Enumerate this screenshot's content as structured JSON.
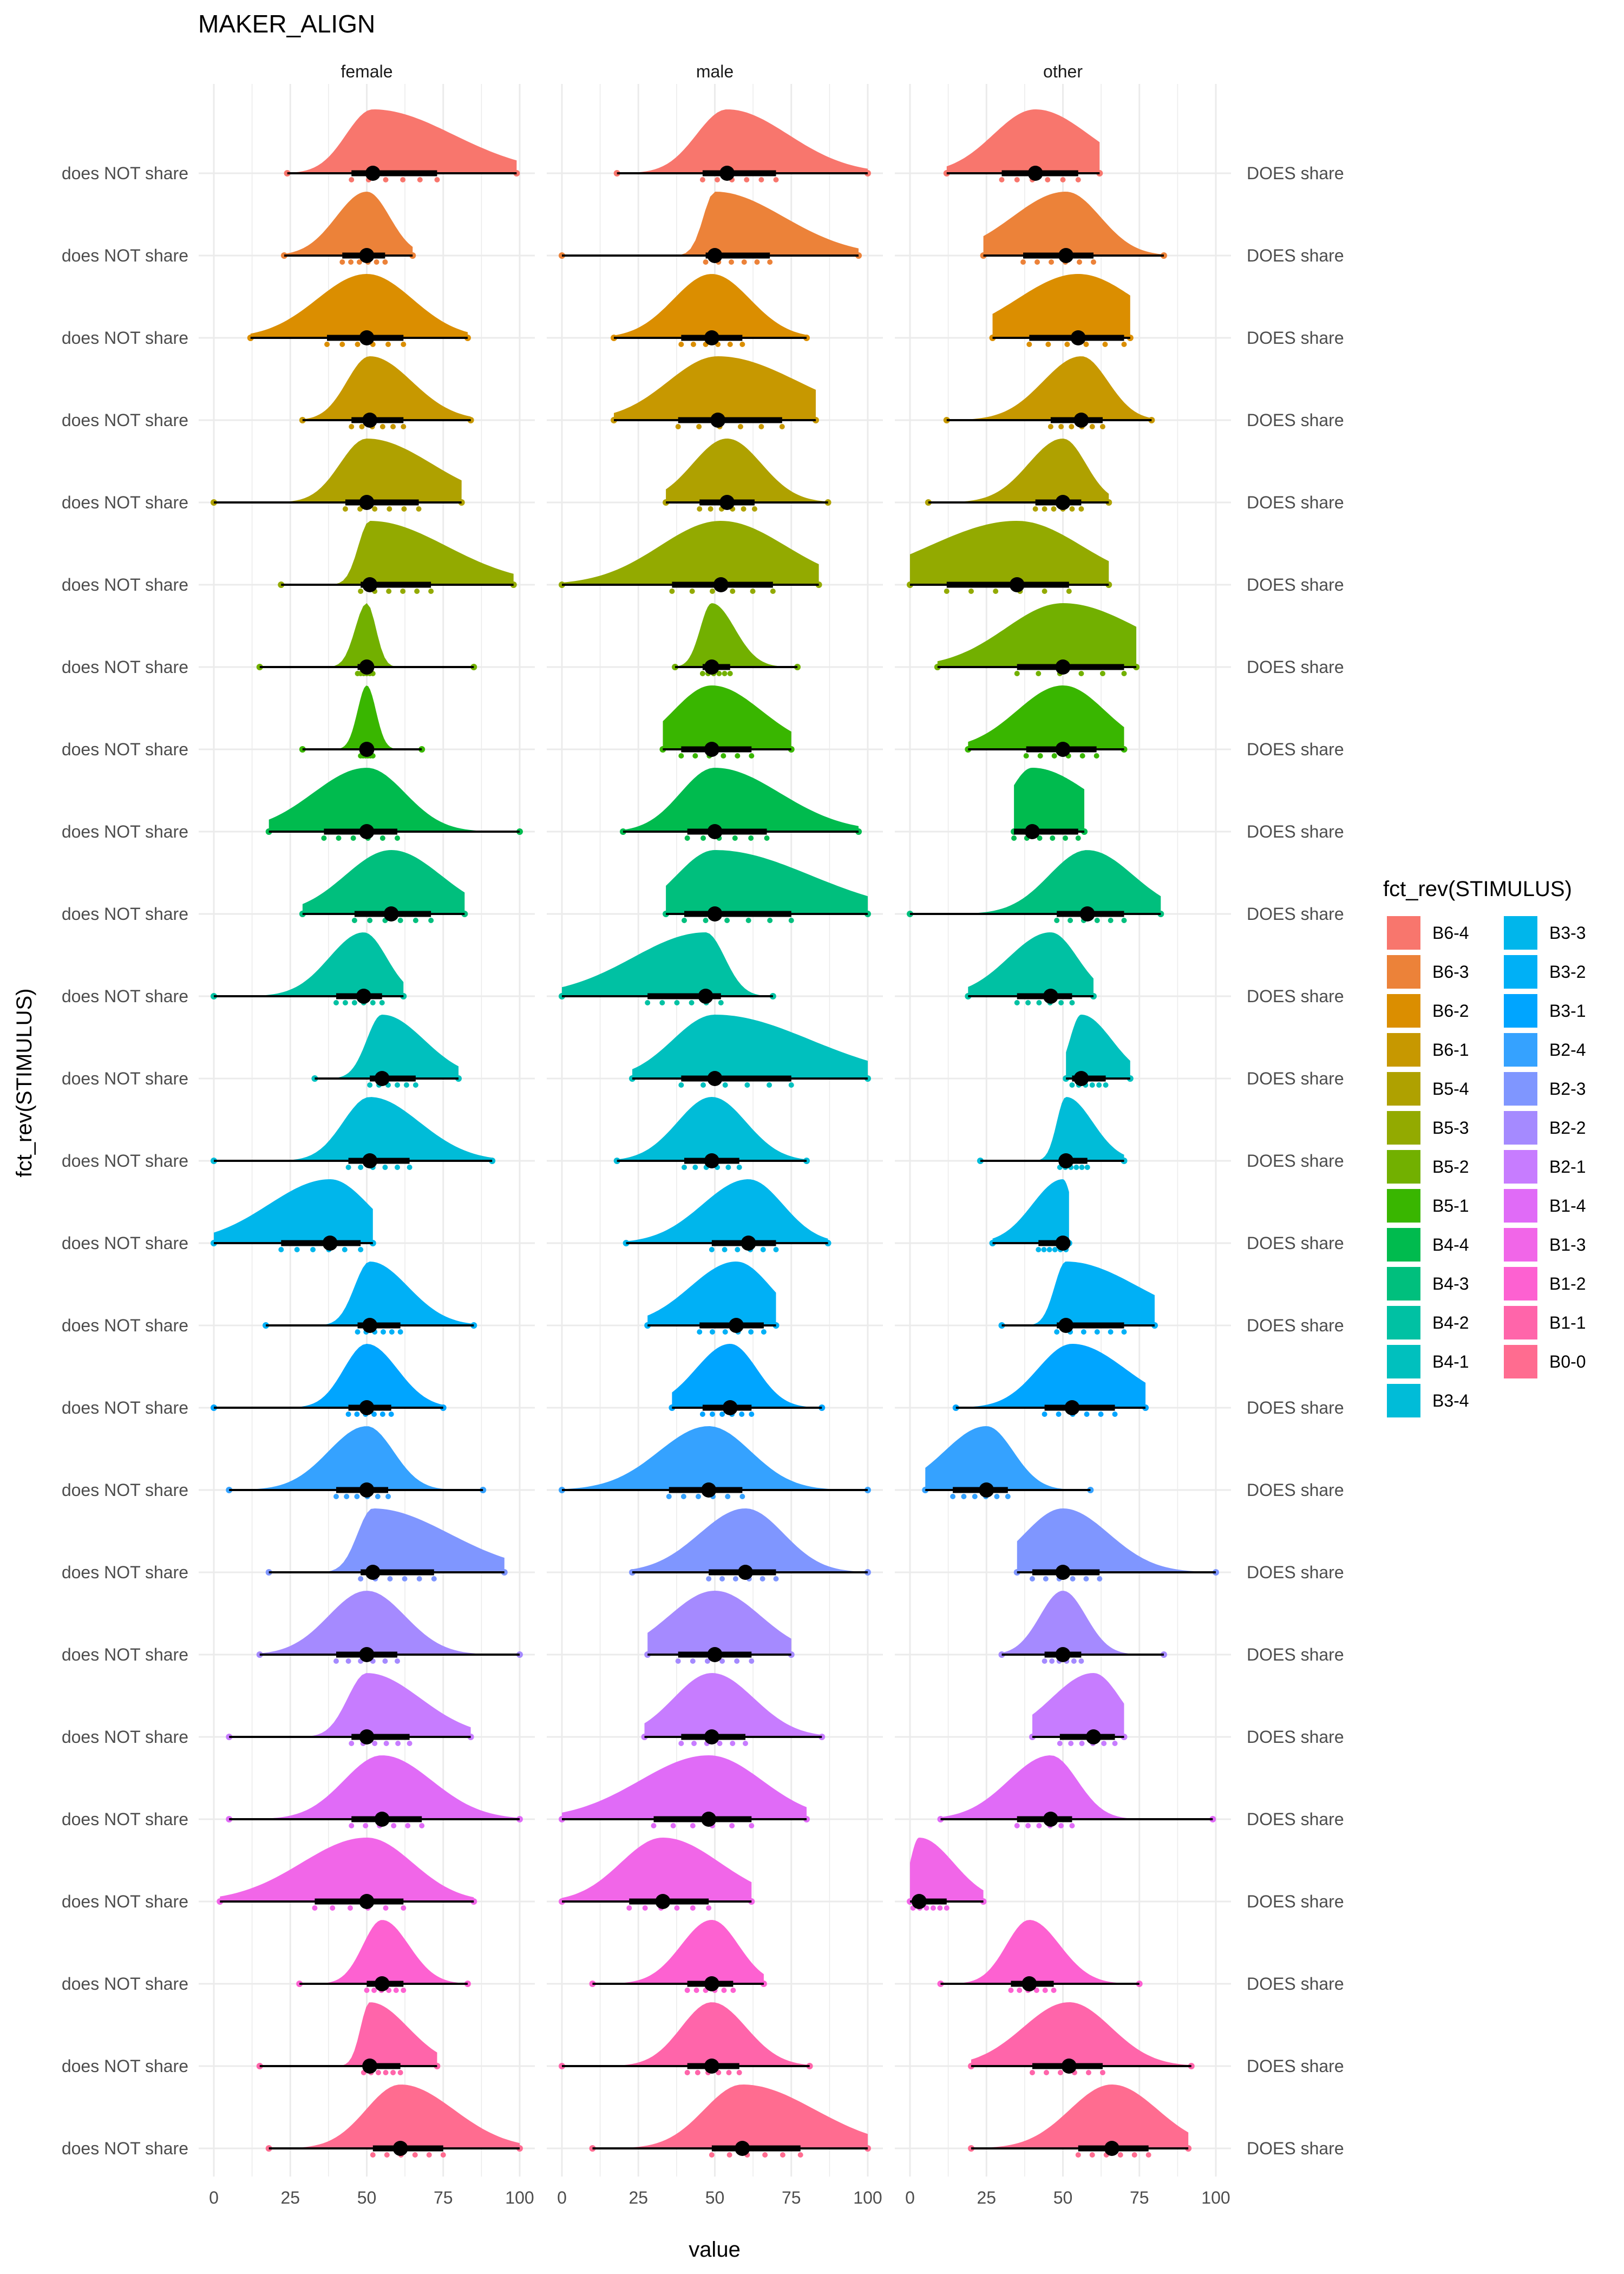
{
  "chart_data": {
    "type": "raincloud",
    "title": "MAKER_ALIGN",
    "xlabel": "value",
    "ylabel": "fct_rev(STIMULUS)",
    "xlim": [
      0,
      100
    ],
    "x_ticks": [
      0,
      25,
      50,
      75,
      100
    ],
    "facets": [
      "female",
      "male",
      "other"
    ],
    "row_label_left": "does NOT share",
    "row_label_right": "DOES share",
    "legend_title": "fct_rev(STIMULUS)",
    "legend_placement": "right",
    "grid": true,
    "stimuli": [
      "B0-0",
      "B1-1",
      "B1-2",
      "B1-3",
      "B1-4",
      "B2-1",
      "B2-2",
      "B2-3",
      "B2-4",
      "B3-1",
      "B3-2",
      "B3-3",
      "B3-4",
      "B4-1",
      "B4-2",
      "B4-3",
      "B4-4",
      "B5-1",
      "B5-2",
      "B5-3",
      "B5-4",
      "B6-1",
      "B6-2",
      "B6-3",
      "B6-4"
    ],
    "legend_order": [
      "B6-4",
      "B6-3",
      "B6-2",
      "B6-1",
      "B5-4",
      "B5-3",
      "B5-2",
      "B5-1",
      "B4-4",
      "B4-3",
      "B4-2",
      "B4-1",
      "B3-4",
      "B3-3",
      "B3-2",
      "B3-1",
      "B2-4",
      "B2-3",
      "B2-2",
      "B2-1",
      "B1-4",
      "B1-3",
      "B1-2",
      "B1-1",
      "B0-0"
    ],
    "colors": {
      "B6-4": "#F8766D",
      "B6-3": "#EC8239",
      "B6-2": "#DB8E00",
      "B6-1": "#C79800",
      "B5-4": "#AFA100",
      "B5-3": "#93AA00",
      "B5-2": "#72B000",
      "B5-1": "#39B600",
      "B4-4": "#00BB4E",
      "B4-3": "#00BF7D",
      "B4-2": "#00C1A3",
      "B4-1": "#00C0BE",
      "B3-4": "#00BCD8",
      "B3-3": "#00B6EB",
      "B3-2": "#00B0F6",
      "B3-1": "#00A5FF",
      "B2-4": "#35A2FF",
      "B2-3": "#7F96FF",
      "B2-2": "#A58AFF",
      "B2-1": "#C77CFF",
      "B1-4": "#E06BF7",
      "B1-3": "#F166E8",
      "B1-2": "#FD61D1",
      "B1-1": "#FF65AA",
      "B0-0": "#FF6C90"
    },
    "series": [
      {
        "stimulus": "B0-0",
        "female": {
          "median": 61,
          "q1": 52,
          "q3": 75,
          "min": 18,
          "max": 100
        },
        "male": {
          "median": 59,
          "q1": 49,
          "q3": 78,
          "min": 10,
          "max": 100
        },
        "other": {
          "median": 66,
          "q1": 55,
          "q3": 78,
          "min": 20,
          "max": 91
        }
      },
      {
        "stimulus": "B1-1",
        "female": {
          "median": 51,
          "q1": 49,
          "q3": 61,
          "min": 15,
          "max": 73
        },
        "male": {
          "median": 49,
          "q1": 41,
          "q3": 58,
          "min": 0,
          "max": 81
        },
        "other": {
          "median": 52,
          "q1": 40,
          "q3": 63,
          "min": 20,
          "max": 92
        }
      },
      {
        "stimulus": "B1-2",
        "female": {
          "median": 55,
          "q1": 50,
          "q3": 62,
          "min": 28,
          "max": 83
        },
        "male": {
          "median": 49,
          "q1": 41,
          "q3": 56,
          "min": 10,
          "max": 66
        },
        "other": {
          "median": 39,
          "q1": 33,
          "q3": 47,
          "min": 10,
          "max": 75
        }
      },
      {
        "stimulus": "B1-3",
        "female": {
          "median": 50,
          "q1": 33,
          "q3": 62,
          "min": 2,
          "max": 85
        },
        "male": {
          "median": 33,
          "q1": 22,
          "q3": 48,
          "min": 0,
          "max": 62
        },
        "other": {
          "median": 3,
          "q1": 1,
          "q3": 12,
          "min": 0,
          "max": 24
        }
      },
      {
        "stimulus": "B1-4",
        "female": {
          "median": 55,
          "q1": 45,
          "q3": 68,
          "min": 5,
          "max": 100
        },
        "male": {
          "median": 48,
          "q1": 30,
          "q3": 62,
          "min": 0,
          "max": 80
        },
        "other": {
          "median": 46,
          "q1": 35,
          "q3": 53,
          "min": 10,
          "max": 99
        }
      },
      {
        "stimulus": "B2-1",
        "female": {
          "median": 50,
          "q1": 45,
          "q3": 64,
          "min": 5,
          "max": 84
        },
        "male": {
          "median": 49,
          "q1": 39,
          "q3": 60,
          "min": 27,
          "max": 85
        },
        "other": {
          "median": 60,
          "q1": 49,
          "q3": 67,
          "min": 40,
          "max": 70
        }
      },
      {
        "stimulus": "B2-2",
        "female": {
          "median": 50,
          "q1": 40,
          "q3": 60,
          "min": 15,
          "max": 100
        },
        "male": {
          "median": 50,
          "q1": 38,
          "q3": 62,
          "min": 28,
          "max": 75
        },
        "other": {
          "median": 50,
          "q1": 44,
          "q3": 56,
          "min": 30,
          "max": 83
        }
      },
      {
        "stimulus": "B2-3",
        "female": {
          "median": 52,
          "q1": 48,
          "q3": 72,
          "min": 18,
          "max": 95
        },
        "male": {
          "median": 60,
          "q1": 48,
          "q3": 70,
          "min": 23,
          "max": 100
        },
        "other": {
          "median": 50,
          "q1": 40,
          "q3": 62,
          "min": 35,
          "max": 100
        }
      },
      {
        "stimulus": "B2-4",
        "female": {
          "median": 50,
          "q1": 40,
          "q3": 57,
          "min": 5,
          "max": 88
        },
        "male": {
          "median": 48,
          "q1": 35,
          "q3": 59,
          "min": 0,
          "max": 100
        },
        "other": {
          "median": 25,
          "q1": 14,
          "q3": 32,
          "min": 5,
          "max": 59
        }
      },
      {
        "stimulus": "B3-1",
        "female": {
          "median": 50,
          "q1": 44,
          "q3": 58,
          "min": 0,
          "max": 75
        },
        "male": {
          "median": 55,
          "q1": 46,
          "q3": 62,
          "min": 36,
          "max": 85
        },
        "other": {
          "median": 53,
          "q1": 44,
          "q3": 67,
          "min": 15,
          "max": 77
        }
      },
      {
        "stimulus": "B3-2",
        "female": {
          "median": 51,
          "q1": 47,
          "q3": 61,
          "min": 17,
          "max": 85
        },
        "male": {
          "median": 57,
          "q1": 45,
          "q3": 66,
          "min": 28,
          "max": 70
        },
        "other": {
          "median": 51,
          "q1": 48,
          "q3": 70,
          "min": 30,
          "max": 80
        }
      },
      {
        "stimulus": "B3-3",
        "female": {
          "median": 38,
          "q1": 22,
          "q3": 48,
          "min": 0,
          "max": 52
        },
        "male": {
          "median": 61,
          "q1": 49,
          "q3": 70,
          "min": 21,
          "max": 87
        },
        "other": {
          "median": 50,
          "q1": 42,
          "q3": 51,
          "min": 27,
          "max": 52
        }
      },
      {
        "stimulus": "B3-4",
        "female": {
          "median": 51,
          "q1": 44,
          "q3": 64,
          "min": 0,
          "max": 91
        },
        "male": {
          "median": 49,
          "q1": 40,
          "q3": 58,
          "min": 18,
          "max": 80
        },
        "other": {
          "median": 51,
          "q1": 49,
          "q3": 58,
          "min": 23,
          "max": 70
        }
      },
      {
        "stimulus": "B4-1",
        "female": {
          "median": 55,
          "q1": 51,
          "q3": 66,
          "min": 33,
          "max": 80
        },
        "male": {
          "median": 50,
          "q1": 39,
          "q3": 75,
          "min": 23,
          "max": 100
        },
        "other": {
          "median": 56,
          "q1": 53,
          "q3": 64,
          "min": 51,
          "max": 72
        }
      },
      {
        "stimulus": "B4-2",
        "female": {
          "median": 49,
          "q1": 40,
          "q3": 55,
          "min": 0,
          "max": 62
        },
        "male": {
          "median": 47,
          "q1": 28,
          "q3": 52,
          "min": 0,
          "max": 69
        },
        "other": {
          "median": 46,
          "q1": 35,
          "q3": 53,
          "min": 19,
          "max": 60
        }
      },
      {
        "stimulus": "B4-3",
        "female": {
          "median": 58,
          "q1": 46,
          "q3": 71,
          "min": 29,
          "max": 82
        },
        "male": {
          "median": 50,
          "q1": 40,
          "q3": 75,
          "min": 34,
          "max": 100
        },
        "other": {
          "median": 58,
          "q1": 48,
          "q3": 70,
          "min": 0,
          "max": 82
        }
      },
      {
        "stimulus": "B4-4",
        "female": {
          "median": 50,
          "q1": 36,
          "q3": 60,
          "min": 18,
          "max": 100
        },
        "male": {
          "median": 50,
          "q1": 41,
          "q3": 67,
          "min": 20,
          "max": 97
        },
        "other": {
          "median": 40,
          "q1": 34,
          "q3": 55,
          "min": 34,
          "max": 57
        }
      },
      {
        "stimulus": "B5-1",
        "female": {
          "median": 50,
          "q1": 48,
          "q3": 52,
          "min": 29,
          "max": 68
        },
        "male": {
          "median": 49,
          "q1": 39,
          "q3": 62,
          "min": 33,
          "max": 75
        },
        "other": {
          "median": 50,
          "q1": 38,
          "q3": 61,
          "min": 19,
          "max": 70
        }
      },
      {
        "stimulus": "B5-2",
        "female": {
          "median": 50,
          "q1": 47,
          "q3": 52,
          "min": 15,
          "max": 85
        },
        "male": {
          "median": 49,
          "q1": 46,
          "q3": 55,
          "min": 37,
          "max": 77
        },
        "other": {
          "median": 50,
          "q1": 35,
          "q3": 70,
          "min": 9,
          "max": 74
        }
      },
      {
        "stimulus": "B5-3",
        "female": {
          "median": 51,
          "q1": 48,
          "q3": 71,
          "min": 22,
          "max": 98
        },
        "male": {
          "median": 52,
          "q1": 36,
          "q3": 69,
          "min": 0,
          "max": 84
        },
        "other": {
          "median": 35,
          "q1": 12,
          "q3": 52,
          "min": 0,
          "max": 65
        }
      },
      {
        "stimulus": "B5-4",
        "female": {
          "median": 50,
          "q1": 43,
          "q3": 67,
          "min": 0,
          "max": 81
        },
        "male": {
          "median": 54,
          "q1": 45,
          "q3": 63,
          "min": 34,
          "max": 87
        },
        "other": {
          "median": 50,
          "q1": 41,
          "q3": 56,
          "min": 6,
          "max": 65
        }
      },
      {
        "stimulus": "B6-1",
        "female": {
          "median": 51,
          "q1": 45,
          "q3": 62,
          "min": 29,
          "max": 84
        },
        "male": {
          "median": 51,
          "q1": 38,
          "q3": 72,
          "min": 17,
          "max": 83
        },
        "other": {
          "median": 56,
          "q1": 46,
          "q3": 63,
          "min": 12,
          "max": 79
        }
      },
      {
        "stimulus": "B6-2",
        "female": {
          "median": 50,
          "q1": 37,
          "q3": 62,
          "min": 12,
          "max": 83
        },
        "male": {
          "median": 49,
          "q1": 39,
          "q3": 59,
          "min": 17,
          "max": 80
        },
        "other": {
          "median": 55,
          "q1": 39,
          "q3": 70,
          "min": 27,
          "max": 72
        }
      },
      {
        "stimulus": "B6-3",
        "female": {
          "median": 50,
          "q1": 42,
          "q3": 56,
          "min": 23,
          "max": 65
        },
        "male": {
          "median": 50,
          "q1": 47,
          "q3": 68,
          "min": 0,
          "max": 97
        },
        "other": {
          "median": 51,
          "q1": 37,
          "q3": 60,
          "min": 24,
          "max": 83
        }
      },
      {
        "stimulus": "B6-4",
        "female": {
          "median": 52,
          "q1": 45,
          "q3": 73,
          "min": 24,
          "max": 99
        },
        "male": {
          "median": 54,
          "q1": 46,
          "q3": 70,
          "min": 18,
          "max": 100
        },
        "other": {
          "median": 41,
          "q1": 30,
          "q3": 55,
          "min": 12,
          "max": 62
        }
      }
    ]
  }
}
